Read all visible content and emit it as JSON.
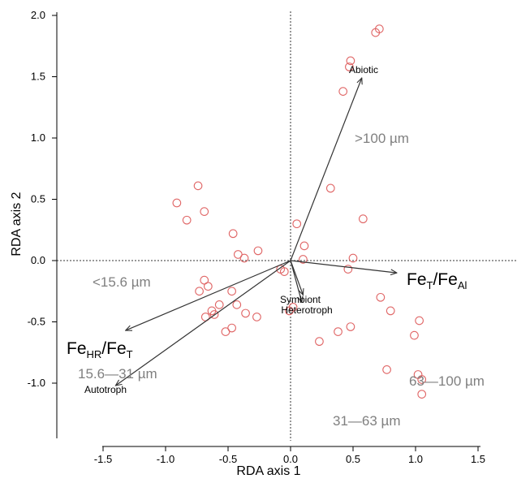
{
  "chart_data": {
    "type": "scatter",
    "xlabel": "RDA axis 1",
    "ylabel": "RDA axis 2",
    "xlim": [
      -1.85,
      1.85
    ],
    "ylim": [
      -1.48,
      2.03
    ],
    "xticks": [
      -1.5,
      -1.0,
      -0.5,
      0.0,
      0.5,
      1.0,
      1.5
    ],
    "xtick_labels": [
      "-1.5",
      "-1.0",
      "-0.5",
      "0.0",
      "0.5",
      "1.0",
      "1.5"
    ],
    "yticks": [
      -1.0,
      -0.5,
      0.0,
      0.5,
      1.0,
      1.5,
      2.0
    ],
    "ytick_labels": [
      "-1.0",
      "-0.5",
      "0.0",
      "0.5",
      "1.0",
      "1.5",
      "2.0"
    ],
    "reference_lines": [
      "x=0",
      "y=0"
    ],
    "grid": false,
    "point_color": "#e06666",
    "arrow_color": "#333333",
    "label_color": "#000000",
    "grain_label_color": "#808080",
    "points": [
      {
        "x": 0.68,
        "y": 1.86
      },
      {
        "x": 0.71,
        "y": 1.89
      },
      {
        "x": 0.48,
        "y": 1.63
      },
      {
        "x": 0.47,
        "y": 1.58
      },
      {
        "x": 0.42,
        "y": 1.38
      },
      {
        "x": 0.32,
        "y": 0.59
      },
      {
        "x": 0.58,
        "y": 0.34
      },
      {
        "x": 0.05,
        "y": 0.3
      },
      {
        "x": 0.11,
        "y": 0.12
      },
      {
        "x": 0.1,
        "y": 0.01
      },
      {
        "x": 0.5,
        "y": 0.02
      },
      {
        "x": 0.46,
        "y": -0.07
      },
      {
        "x": -0.74,
        "y": 0.61
      },
      {
        "x": -0.91,
        "y": 0.47
      },
      {
        "x": -0.69,
        "y": 0.4
      },
      {
        "x": -0.83,
        "y": 0.33
      },
      {
        "x": -0.46,
        "y": 0.22
      },
      {
        "x": -0.26,
        "y": 0.08
      },
      {
        "x": -0.42,
        "y": 0.05
      },
      {
        "x": -0.37,
        "y": 0.02
      },
      {
        "x": -0.08,
        "y": -0.07
      },
      {
        "x": -0.05,
        "y": -0.09
      },
      {
        "x": -0.69,
        "y": -0.16
      },
      {
        "x": -0.66,
        "y": -0.21
      },
      {
        "x": -0.73,
        "y": -0.25
      },
      {
        "x": -0.47,
        "y": -0.25
      },
      {
        "x": 0.02,
        "y": -0.38
      },
      {
        "x": -0.01,
        "y": -0.41
      },
      {
        "x": -0.57,
        "y": -0.36
      },
      {
        "x": -0.63,
        "y": -0.41
      },
      {
        "x": -0.61,
        "y": -0.44
      },
      {
        "x": -0.68,
        "y": -0.46
      },
      {
        "x": -0.43,
        "y": -0.36
      },
      {
        "x": -0.36,
        "y": -0.43
      },
      {
        "x": -0.27,
        "y": -0.46
      },
      {
        "x": -0.47,
        "y": -0.55
      },
      {
        "x": -0.52,
        "y": -0.58
      },
      {
        "x": 0.72,
        "y": -0.3
      },
      {
        "x": 0.8,
        "y": -0.41
      },
      {
        "x": 0.38,
        "y": -0.58
      },
      {
        "x": 0.48,
        "y": -0.54
      },
      {
        "x": 0.23,
        "y": -0.66
      },
      {
        "x": 1.03,
        "y": -0.49
      },
      {
        "x": 0.99,
        "y": -0.61
      },
      {
        "x": 0.77,
        "y": -0.89
      },
      {
        "x": 1.02,
        "y": -0.93
      },
      {
        "x": 1.05,
        "y": -0.97
      },
      {
        "x": 1.05,
        "y": -1.09
      }
    ],
    "vectors": [
      {
        "label": "Abiotic",
        "x": 0.57,
        "y": 1.49
      },
      {
        "label": "Symbiont",
        "x": 0.1,
        "y": -0.28
      },
      {
        "label": "Heterotroph",
        "x": 0.09,
        "y": -0.34
      },
      {
        "label": "Autotroph",
        "x": -1.4,
        "y": -1.02
      },
      {
        "label": "Fe_HR/Fe_T",
        "x": -1.32,
        "y": -0.57
      },
      {
        "label": "Fe_T/Fe_Al",
        "x": 0.85,
        "y": -0.1
      }
    ],
    "vector_labels": {
      "abiotic": "Abiotic",
      "symbiont": "Symbiont",
      "heterotroph": "Heterotroph",
      "autotroph": "Autotroph",
      "fehr_main": "Fe",
      "fehr_sub": "HR",
      "fehr_slash": "/Fe",
      "fehr_sub2": "T",
      "feal_main": "Fe",
      "feal_sub": "T",
      "feal_slash": "/Fe",
      "feal_sub2": "Al"
    },
    "grain_labels": {
      "gt100": ">100 µm",
      "lt15": "<15.6 µm",
      "r15_31": "15.6—31 µm",
      "r63_100": "63—100 µm",
      "r31_63": "31—63 µm"
    }
  }
}
